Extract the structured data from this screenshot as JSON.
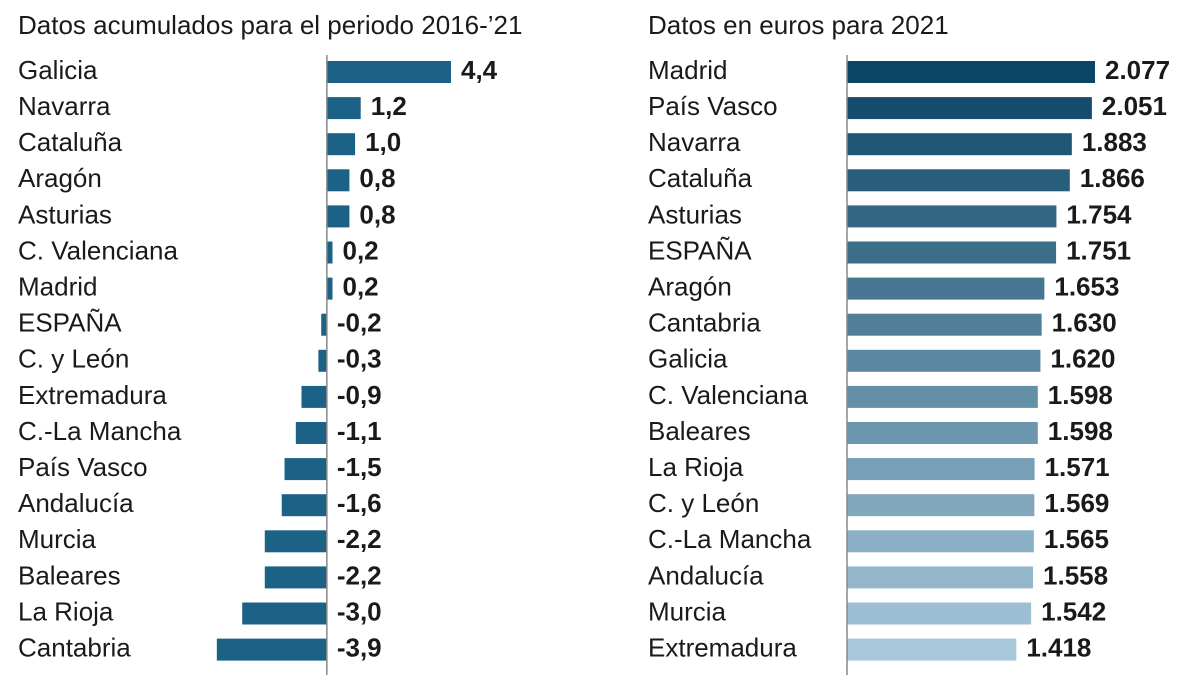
{
  "chart_data": [
    {
      "type": "bar",
      "orientation": "horizontal",
      "subtitle": "Datos acumulados para el periodo 2016-’21",
      "categories": [
        "Galicia",
        "Navarra",
        "Cataluña",
        "Aragón",
        "Asturias",
        "C. Valenciana",
        "Madrid",
        "ESPAÑA",
        "C. y León",
        "Extremadura",
        "C.-La Mancha",
        "País Vasco",
        "Andalucía",
        "Murcia",
        "Baleares",
        "La Rioja",
        "Cantabria"
      ],
      "values": [
        4.4,
        1.2,
        1.0,
        0.8,
        0.8,
        0.2,
        0.2,
        -0.2,
        -0.3,
        -0.9,
        -1.1,
        -1.5,
        -1.6,
        -2.2,
        -2.2,
        -3.0,
        -3.9
      ],
      "value_labels": [
        "4,4",
        "1,2",
        "1,0",
        "0,8",
        "0,8",
        "0,2",
        "0,2",
        "-0,2",
        "-0,3",
        "-0,9",
        "-1,1",
        "-1,5",
        "-1,6",
        "-2,2",
        "-2,2",
        "-3,0",
        "-3,9"
      ],
      "color": "#1b6286",
      "label_colors": {
        "positive": "#111111",
        "negative": "#b3202a"
      },
      "xlim": [
        -4,
        4.4
      ]
    },
    {
      "type": "bar",
      "orientation": "horizontal",
      "subtitle": "Datos en euros para 2021",
      "categories": [
        "Madrid",
        "País Vasco",
        "Navarra",
        "Cataluña",
        "Asturias",
        "ESPAÑA",
        "Aragón",
        "Cantabria",
        "Galicia",
        "C. Valenciana",
        "Baleares",
        "La Rioja",
        "C. y León",
        "C.-La Mancha",
        "Andalucía",
        "Murcia",
        "Extremadura"
      ],
      "values": [
        2077,
        2051,
        1883,
        1866,
        1754,
        1751,
        1653,
        1630,
        1620,
        1598,
        1598,
        1571,
        1569,
        1565,
        1558,
        1542,
        1418
      ],
      "value_labels": [
        "2.077",
        "2.051",
        "1.883",
        "1.866",
        "1.754",
        "1.751",
        "1.653",
        "1.630",
        "1.620",
        "1.598",
        "1.598",
        "1.571",
        "1.569",
        "1.565",
        "1.558",
        "1.542",
        "1.418"
      ],
      "colors": [
        "#0b4666",
        "#154e6d",
        "#1f5675",
        "#285e7c",
        "#326683",
        "#3c6e8a",
        "#467692",
        "#507e99",
        "#5a87a0",
        "#638fa7",
        "#6d97af",
        "#779fb6",
        "#81a7bd",
        "#8bafc4",
        "#94b7cc",
        "#9ebfd3",
        "#a8c7da"
      ],
      "label_colors": {
        "positive": "#0e5577",
        "negative": "#0e5577"
      },
      "xlim": [
        0,
        2077
      ]
    }
  ]
}
